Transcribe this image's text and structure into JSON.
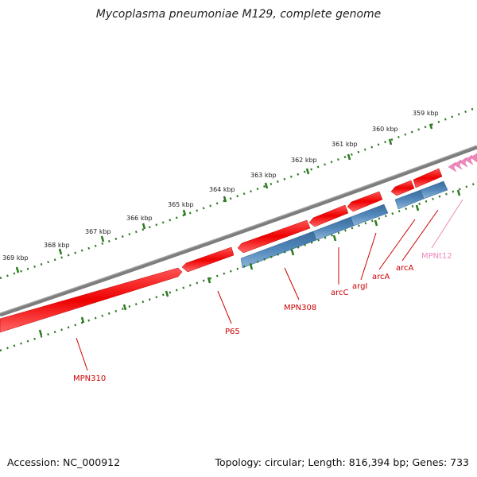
{
  "title": "Mycoplasma pneumoniae M129, complete genome",
  "footer": {
    "accession": "Accession: NC_000912",
    "stats": "Topology: circular; Length: 816,394 bp; Genes: 733"
  },
  "colors": {
    "backbone": "#7a7a7a",
    "ruler": "#2a7a1e",
    "forward_gene": "#ee1111",
    "reverse_gene": "#4a7fb0",
    "rna_gene": "#ee88bb",
    "label_red": "#cc0000",
    "label_pink": "#ee88bb"
  },
  "ruler_ticks": [
    {
      "label": "359 kbp"
    },
    {
      "label": "360 kbp"
    },
    {
      "label": "361 kbp"
    },
    {
      "label": "362 kbp"
    },
    {
      "label": "363 kbp"
    },
    {
      "label": "364 kbp"
    },
    {
      "label": "365 kbp"
    },
    {
      "label": "366 kbp"
    },
    {
      "label": "367 kbp"
    },
    {
      "label": "368 kbp"
    },
    {
      "label": "369 kbp"
    }
  ],
  "gene_labels": [
    {
      "name": "MPN310"
    },
    {
      "name": "P65"
    },
    {
      "name": "MPN308"
    },
    {
      "name": "arcC"
    },
    {
      "name": "argI"
    },
    {
      "name": "arcA"
    },
    {
      "name": "arcA"
    },
    {
      "name": "MPNt12"
    }
  ]
}
